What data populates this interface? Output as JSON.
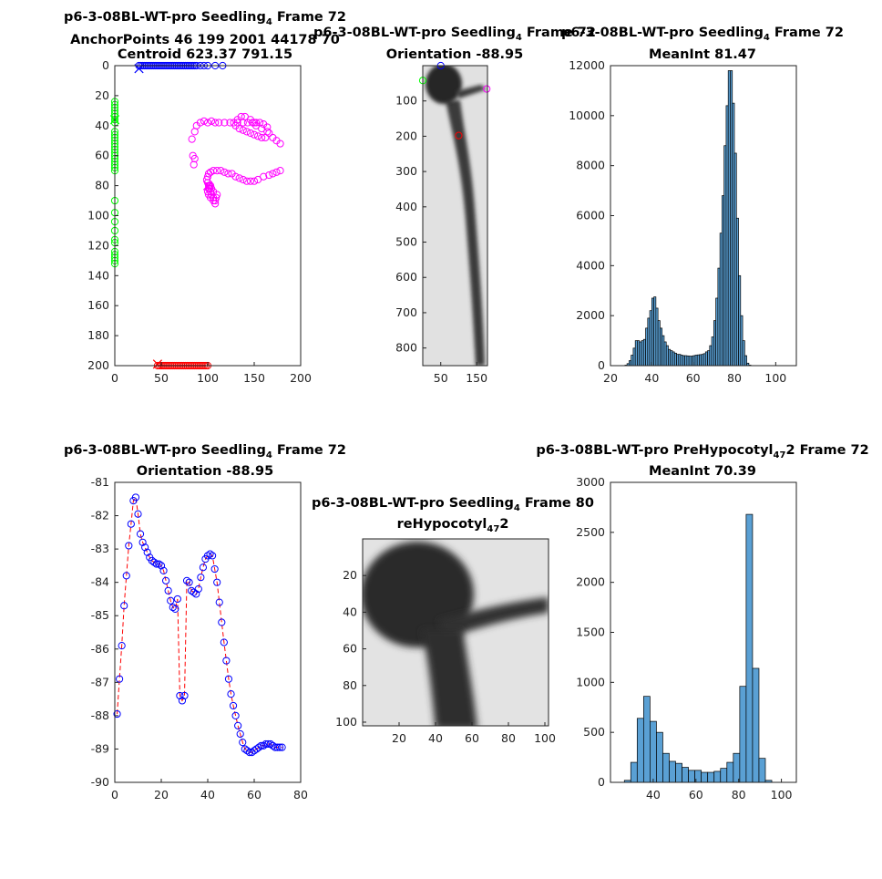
{
  "figure": {
    "background": "#ffffff"
  },
  "colors": {
    "blue": "#0000ff",
    "red": "#ff0000",
    "green": "#00ff00",
    "magenta": "#ff00ff",
    "hist": "#5aa0d4",
    "axis": "#222222",
    "dashed": "#ff0000"
  },
  "chart_data": [
    {
      "id": "anchor",
      "type": "scatter",
      "title_lines": [
        "p6-3-08BL-WT-pro Seedling|4| Frame 72",
        "AnchorPoints 46   199  2001   44178   70",
        "Centroid 623.37 791.15"
      ],
      "xlim": [
        0,
        200
      ],
      "ylim": [
        0,
        200
      ],
      "y_reversed": true,
      "xticks": [
        "0",
        "50",
        "100",
        "150",
        "200"
      ],
      "yticks": [
        "0",
        "20",
        "40",
        "60",
        "80",
        "100",
        "120",
        "140",
        "160",
        "180",
        "200"
      ],
      "series": [
        {
          "color": "blue",
          "marker": "circle",
          "x": [
            26,
            28,
            30,
            32,
            34,
            36,
            38,
            40,
            42,
            44,
            46,
            48,
            50,
            52,
            54,
            56,
            58,
            60,
            62,
            64,
            66,
            68,
            70,
            72,
            74,
            76,
            78,
            80,
            82,
            84,
            86,
            88,
            92,
            96,
            100,
            108,
            116
          ],
          "y": [
            0,
            0,
            0,
            0,
            0,
            0,
            0,
            0,
            0,
            0,
            0,
            0,
            0,
            0,
            0,
            0,
            0,
            0,
            0,
            0,
            0,
            0,
            0,
            0,
            0,
            0,
            0,
            0,
            0,
            0,
            0,
            0,
            0,
            0,
            0,
            0,
            0
          ]
        },
        {
          "color": "blue",
          "marker": "x",
          "x": [
            26
          ],
          "y": [
            2
          ]
        },
        {
          "color": "green",
          "marker": "circle",
          "x": [
            0,
            0,
            0,
            0,
            0,
            0,
            0,
            0,
            0,
            0,
            0,
            0,
            0,
            0,
            0,
            0,
            0,
            0,
            0,
            0,
            0,
            0,
            0,
            0,
            0,
            0,
            0,
            0,
            0,
            0,
            0,
            0,
            0
          ],
          "y": [
            24,
            26,
            28,
            30,
            32,
            34,
            36,
            38,
            44,
            46,
            48,
            50,
            52,
            54,
            56,
            58,
            60,
            62,
            64,
            66,
            68,
            70,
            90,
            98,
            104,
            110,
            116,
            118,
            124,
            126,
            128,
            130,
            132
          ]
        },
        {
          "color": "green",
          "marker": "x",
          "x": [
            0
          ],
          "y": [
            36
          ]
        },
        {
          "color": "magenta",
          "marker": "circle",
          "x": [
            83,
            86,
            88,
            92,
            96,
            100,
            104,
            108,
            112,
            118,
            124,
            132,
            138,
            143,
            148,
            150,
            152,
            156,
            160,
            164,
            166,
            162,
            158,
            154,
            150,
            146,
            142,
            138,
            134,
            130,
            128,
            132,
            136,
            140,
            146,
            152,
            158,
            164,
            170,
            174,
            178,
            178,
            174,
            170,
            166,
            160,
            154,
            150,
            146,
            142,
            138,
            134,
            130,
            126,
            122,
            118,
            114,
            110,
            106,
            103,
            101,
            100,
            99,
            100,
            101,
            102,
            103,
            104,
            106,
            108,
            109,
            110,
            106,
            104,
            103,
            102,
            101,
            100,
            101,
            103,
            106,
            108,
            86,
            84,
            85
          ],
          "y": [
            49,
            44,
            40,
            38,
            37,
            38,
            37,
            38,
            38,
            38,
            38,
            38,
            38,
            38,
            38,
            38,
            38,
            38,
            39,
            41,
            45,
            48,
            48,
            47,
            46,
            45,
            44,
            43,
            42,
            40,
            38,
            36,
            34,
            34,
            36,
            40,
            42,
            44,
            48,
            50,
            52,
            70,
            71,
            72,
            73,
            74,
            76,
            77,
            77,
            77,
            76,
            75,
            74,
            72,
            72,
            71,
            70,
            70,
            70,
            71,
            72,
            74,
            76,
            78,
            80,
            82,
            84,
            86,
            88,
            90,
            88,
            86,
            84,
            82,
            80,
            80,
            82,
            84,
            86,
            88,
            90,
            92,
            62,
            60,
            66
          ]
        },
        {
          "color": "magenta",
          "marker": "x",
          "x": [
            100
          ],
          "y": [
            80
          ]
        },
        {
          "color": "red",
          "marker": "circle",
          "x": [
            46,
            48,
            50,
            52,
            54,
            56,
            58,
            60,
            62,
            64,
            66,
            68,
            70,
            72,
            74,
            76,
            78,
            80,
            82,
            84,
            86,
            88,
            90,
            92,
            94,
            96,
            98,
            100
          ],
          "y": [
            200,
            200,
            200,
            200,
            200,
            200,
            200,
            200,
            200,
            200,
            200,
            200,
            200,
            200,
            200,
            200,
            200,
            200,
            200,
            200,
            200,
            200,
            200,
            200,
            200,
            200,
            200,
            200
          ]
        },
        {
          "color": "red",
          "marker": "x",
          "x": [
            46
          ],
          "y": [
            199
          ]
        }
      ]
    },
    {
      "id": "image1",
      "type": "image",
      "title_lines": [
        "p6-3-08BL-WT-pro Seedling|4| Frame 72",
        "Orientation -88.95"
      ],
      "xlim": [
        0,
        180
      ],
      "ylim": [
        0,
        850
      ],
      "y_reversed": true,
      "xticks": [
        "50",
        "150"
      ],
      "yticks": [
        "100",
        "200",
        "300",
        "400",
        "500",
        "600",
        "700",
        "800"
      ],
      "markers": [
        {
          "color": "blue",
          "x": 50,
          "y": 0
        },
        {
          "color": "green",
          "x": 0,
          "y": 42
        },
        {
          "color": "magenta",
          "x": 178,
          "y": 66
        },
        {
          "color": "red",
          "x": 100,
          "y": 198
        }
      ]
    },
    {
      "id": "hist1",
      "type": "bar",
      "title_lines": [
        "p6-3-08BL-WT-pro Seedling|4| Frame 72",
        "MeanInt 81.47"
      ],
      "xlim": [
        20,
        110
      ],
      "ylim": [
        0,
        12000
      ],
      "xticks": [
        "20",
        "40",
        "60",
        "80",
        "100"
      ],
      "yticks": [
        "0",
        "2000",
        "4000",
        "6000",
        "8000",
        "10000",
        "12000"
      ],
      "bin_start": 27,
      "bin_width": 1,
      "values": [
        20,
        80,
        200,
        420,
        700,
        1000,
        1000,
        950,
        1000,
        1050,
        1500,
        1900,
        2200,
        2700,
        2750,
        2300,
        1800,
        1500,
        1200,
        950,
        800,
        650,
        600,
        550,
        500,
        450,
        450,
        420,
        400,
        400,
        390,
        380,
        380,
        400,
        420,
        430,
        440,
        450,
        480,
        550,
        600,
        800,
        1150,
        1800,
        2700,
        3900,
        5300,
        6800,
        8800,
        10400,
        11800,
        11800,
        10500,
        8500,
        5900,
        3600,
        2000,
        1000,
        400,
        100,
        20
      ]
    },
    {
      "id": "orientation",
      "type": "line",
      "title_lines": [
        "p6-3-08BL-WT-pro Seedling|4| Frame 72",
        "Orientation -88.95"
      ],
      "xlim": [
        0,
        80
      ],
      "ylim": [
        -90,
        -81
      ],
      "xticks": [
        "0",
        "20",
        "40",
        "60",
        "80"
      ],
      "yticks": [
        "-81",
        "-82",
        "-83",
        "-84",
        "-85",
        "-86",
        "-87",
        "-88",
        "-89",
        "-90"
      ],
      "x": [
        1,
        2,
        3,
        4,
        5,
        6,
        7,
        8,
        9,
        10,
        11,
        12,
        13,
        14,
        15,
        16,
        17,
        18,
        19,
        20,
        21,
        22,
        23,
        24,
        25,
        26,
        27,
        28,
        29,
        30,
        31,
        32,
        33,
        34,
        35,
        36,
        37,
        38,
        39,
        40,
        41,
        42,
        43,
        44,
        45,
        46,
        47,
        48,
        49,
        50,
        51,
        52,
        53,
        54,
        55,
        56,
        57,
        58,
        59,
        60,
        61,
        62,
        63,
        64,
        65,
        66,
        67,
        68,
        69,
        70,
        71,
        72
      ],
      "y": [
        -87.95,
        -86.9,
        -85.9,
        -84.7,
        -83.8,
        -82.9,
        -82.25,
        -81.55,
        -81.45,
        -81.95,
        -82.55,
        -82.8,
        -82.95,
        -83.1,
        -83.25,
        -83.35,
        -83.4,
        -83.45,
        -83.45,
        -83.5,
        -83.65,
        -83.95,
        -84.25,
        -84.55,
        -84.75,
        -84.8,
        -84.5,
        -87.4,
        -87.55,
        -87.4,
        -83.95,
        -84.0,
        -84.25,
        -84.3,
        -84.35,
        -84.2,
        -83.85,
        -83.55,
        -83.3,
        -83.2,
        -83.15,
        -83.2,
        -83.6,
        -84.0,
        -84.6,
        -85.2,
        -85.8,
        -86.35,
        -86.9,
        -87.35,
        -87.7,
        -88.0,
        -88.3,
        -88.55,
        -88.8,
        -89.0,
        -89.05,
        -89.1,
        -89.1,
        -89.05,
        -89.0,
        -88.95,
        -88.9,
        -88.9,
        -88.85,
        -88.85,
        -88.85,
        -88.9,
        -88.95,
        -88.95,
        -88.95,
        -88.95
      ],
      "line_style": "dashed",
      "line_color": "red",
      "marker_color": "blue"
    },
    {
      "id": "image2",
      "type": "image",
      "title_lines": [
        "p6-3-08BL-WT-pro Seedling|4| Frame 80",
        "reHypocotyl|47|2"
      ],
      "xlim": [
        0,
        102
      ],
      "ylim": [
        0,
        102
      ],
      "y_reversed": true,
      "xticks": [
        "20",
        "40",
        "60",
        "80",
        "100"
      ],
      "yticks": [
        "20",
        "40",
        "60",
        "80",
        "100"
      ]
    },
    {
      "id": "hist2",
      "type": "bar",
      "title_lines": [
        "p6-3-08BL-WT-pro PreHypocotyl|47|2 Frame 72",
        "MeanInt 70.39"
      ],
      "xlim": [
        20,
        107
      ],
      "ylim": [
        0,
        3000
      ],
      "xticks": [
        "40",
        "60",
        "80",
        "100"
      ],
      "yticks": [
        "0",
        "500",
        "1000",
        "1500",
        "2000",
        "2500",
        "3000"
      ],
      "bin_start": 26.5,
      "bin_width": 3,
      "values": [
        20,
        200,
        640,
        860,
        610,
        500,
        290,
        210,
        190,
        150,
        120,
        120,
        100,
        100,
        110,
        140,
        200,
        290,
        960,
        2680,
        1140,
        240,
        20
      ]
    }
  ]
}
